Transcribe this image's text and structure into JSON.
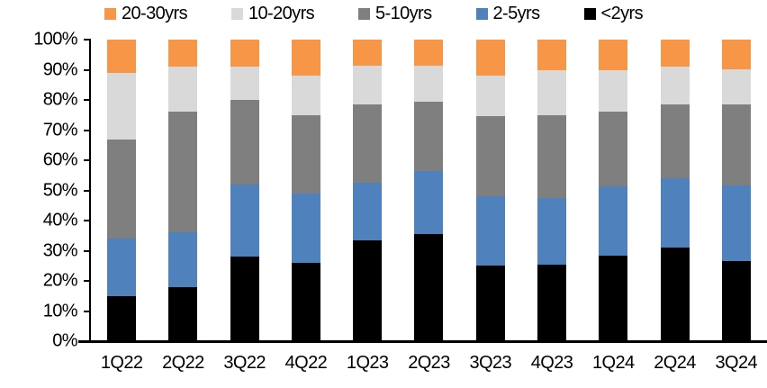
{
  "chart_data": {
    "type": "bar",
    "stacked": true,
    "stacked_to_100_percent": true,
    "title": "",
    "xlabel": "",
    "ylabel": "",
    "categories": [
      "1Q22",
      "2Q22",
      "3Q22",
      "4Q22",
      "1Q23",
      "2Q23",
      "3Q23",
      "4Q23",
      "1Q24",
      "2Q24",
      "3Q24"
    ],
    "series": [
      {
        "name": "<2yrs",
        "color": "#000000",
        "values": [
          15,
          18,
          28,
          26,
          33.5,
          35.5,
          25,
          25.5,
          28.5,
          31,
          26.5
        ]
      },
      {
        "name": "2-5yrs",
        "color": "#4F81BD",
        "values": [
          19,
          18,
          24,
          23,
          19,
          21,
          23,
          22,
          23,
          23,
          25
        ]
      },
      {
        "name": "5-10yrs",
        "color": "#7F7F7F",
        "values": [
          33,
          40,
          28,
          26,
          26,
          23,
          26.5,
          27.5,
          24.5,
          24.5,
          27
        ]
      },
      {
        "name": "10-20yrs",
        "color": "#D9D9D9",
        "values": [
          22,
          15,
          11,
          13,
          13,
          12,
          13.5,
          15,
          14,
          12.5,
          11.5
        ]
      },
      {
        "name": "20-30yrs",
        "color": "#F79646",
        "values": [
          11,
          9,
          9,
          12,
          8.5,
          8.5,
          12,
          10,
          10,
          9,
          10
        ]
      }
    ],
    "legend_position": "top",
    "legend_order": [
      "20-30yrs",
      "10-20yrs",
      "5-10yrs",
      "2-5yrs",
      "<2yrs"
    ],
    "ylim": [
      0,
      100
    ],
    "y_tick_step": 10,
    "y_tick_labels": [
      "0%",
      "10%",
      "20%",
      "30%",
      "40%",
      "50%",
      "60%",
      "70%",
      "80%",
      "90%",
      "100%"
    ],
    "grid": false,
    "background_color": "#FFFFFF",
    "axis_color": "#000000"
  }
}
